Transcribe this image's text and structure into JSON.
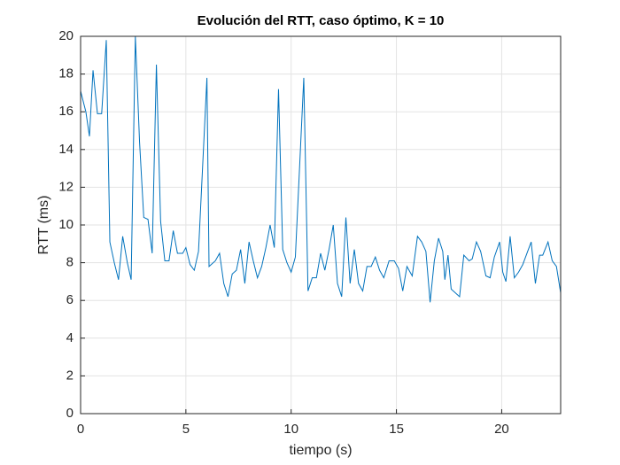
{
  "chart_data": {
    "type": "line",
    "title": "Evolución del RTT, caso óptimo, K = 10",
    "x_label": "tiempo (s)",
    "y_label": "RTT (ms)",
    "x": [
      0,
      0.25,
      0.42,
      0.59,
      0.8,
      1.0,
      1.22,
      1.39,
      1.6,
      1.8,
      2.0,
      2.22,
      2.4,
      2.6,
      2.8,
      3.0,
      3.2,
      3.4,
      3.6,
      3.8,
      4.0,
      4.2,
      4.4,
      4.6,
      4.85,
      5.0,
      5.2,
      5.4,
      5.6,
      6.0,
      6.1,
      6.4,
      6.6,
      6.8,
      7.0,
      7.2,
      7.4,
      7.6,
      7.8,
      8.0,
      8.2,
      8.4,
      8.6,
      8.8,
      9.0,
      9.2,
      9.4,
      9.6,
      9.8,
      10.0,
      10.2,
      10.6,
      10.8,
      11.0,
      11.2,
      11.4,
      11.6,
      11.8,
      12.0,
      12.2,
      12.4,
      12.6,
      12.8,
      13.0,
      13.2,
      13.4,
      13.6,
      13.8,
      14.0,
      14.2,
      14.4,
      14.65,
      14.9,
      15.1,
      15.3,
      15.5,
      15.75,
      16.0,
      16.2,
      16.4,
      16.6,
      16.8,
      17.0,
      17.2,
      17.3,
      17.45,
      17.6,
      18.0,
      18.2,
      18.45,
      18.6,
      18.8,
      19.0,
      19.25,
      19.45,
      19.65,
      19.9,
      20.05,
      20.2,
      20.4,
      20.6,
      20.8,
      21.0,
      21.2,
      21.4,
      21.6,
      21.8,
      21.95,
      22.2,
      22.4,
      22.6,
      22.8
    ],
    "series": [
      {
        "name": "RTT",
        "color": "#0072bd",
        "values": [
          17.1,
          16.0,
          14.7,
          18.2,
          15.9,
          15.9,
          19.8,
          9.1,
          8.0,
          7.1,
          9.4,
          8.0,
          7.1,
          20.0,
          14.4,
          10.4,
          10.3,
          8.5,
          18.5,
          10.2,
          8.1,
          8.1,
          9.7,
          8.5,
          8.5,
          8.8,
          7.9,
          7.6,
          8.6,
          17.8,
          7.8,
          8.1,
          8.5,
          6.9,
          6.2,
          7.4,
          7.6,
          8.7,
          6.9,
          9.1,
          8.1,
          7.2,
          7.8,
          8.8,
          10.0,
          8.8,
          17.2,
          8.7,
          8.0,
          7.5,
          8.3,
          17.8,
          6.5,
          7.2,
          7.2,
          8.5,
          7.6,
          8.7,
          10.0,
          6.9,
          6.2,
          10.4,
          6.9,
          8.7,
          6.9,
          6.5,
          7.8,
          7.8,
          8.3,
          7.6,
          7.2,
          8.1,
          8.1,
          7.7,
          6.5,
          7.8,
          7.3,
          9.4,
          9.1,
          8.6,
          5.9,
          8.1,
          9.3,
          8.6,
          7.1,
          8.4,
          6.6,
          6.2,
          8.4,
          8.1,
          8.2,
          9.1,
          8.6,
          7.3,
          7.2,
          8.3,
          9.1,
          7.5,
          7.0,
          9.4,
          7.2,
          7.5,
          7.9,
          8.5,
          9.1,
          6.9,
          8.4,
          8.4,
          9.1,
          8.1,
          7.8,
          6.4
        ]
      }
    ],
    "xlim": [
      0,
      22.8
    ],
    "ylim": [
      0,
      20
    ],
    "xticks": [
      0,
      5,
      10,
      15,
      20
    ],
    "yticks": [
      0,
      2,
      4,
      6,
      8,
      10,
      12,
      14,
      16,
      18,
      20
    ],
    "grid": true
  }
}
